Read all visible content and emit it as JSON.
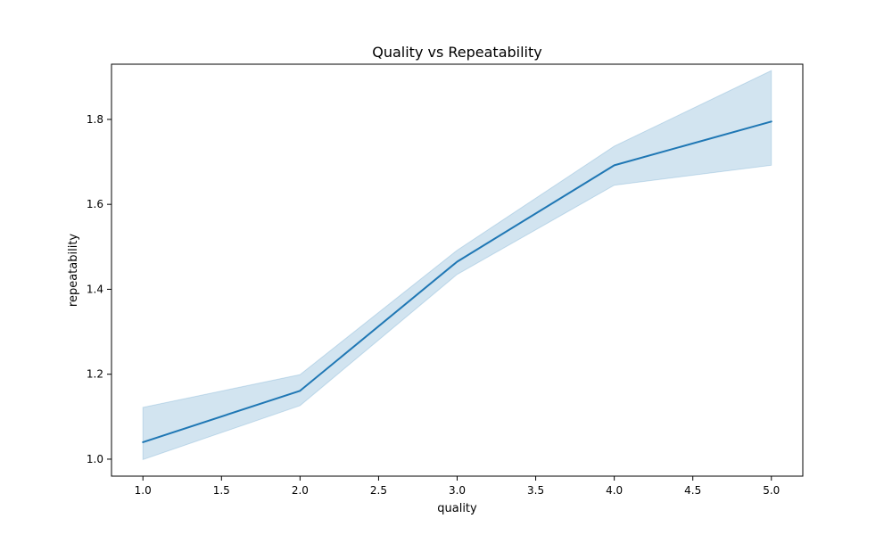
{
  "chart_data": {
    "type": "line",
    "title": "Quality vs Repeatability",
    "xlabel": "quality",
    "ylabel": "repeatability",
    "xlim": [
      0.8,
      5.2
    ],
    "ylim": [
      0.96,
      1.93
    ],
    "xticks": [
      1.0,
      1.5,
      2.0,
      2.5,
      3.0,
      3.5,
      4.0,
      4.5,
      5.0
    ],
    "xtick_labels": [
      "1.0",
      "1.5",
      "2.0",
      "2.5",
      "3.0",
      "3.5",
      "4.0",
      "4.5",
      "5.0"
    ],
    "yticks": [
      1.0,
      1.2,
      1.4,
      1.6,
      1.8
    ],
    "ytick_labels": [
      "1.0",
      "1.2",
      "1.4",
      "1.6",
      "1.8"
    ],
    "grid": false,
    "series": [
      {
        "x": [
          1,
          2,
          3,
          4,
          5
        ],
        "y": [
          1.04,
          1.161,
          1.465,
          1.692,
          1.795
        ],
        "ci_lower": [
          0.999,
          1.126,
          1.435,
          1.645,
          1.692
        ],
        "ci_upper": [
          1.122,
          1.199,
          1.492,
          1.737,
          1.915
        ],
        "color": "#1f77b4",
        "band_color": "#1f77b4"
      }
    ]
  }
}
